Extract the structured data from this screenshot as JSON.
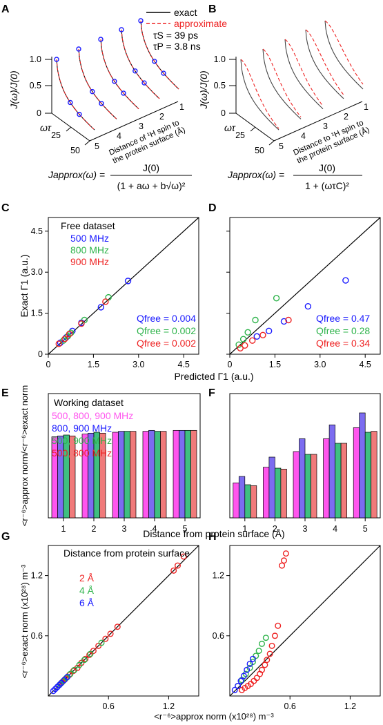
{
  "colors": {
    "blue": "#1a1aff",
    "green": "#2db34a",
    "red": "#ee2222",
    "magenta": "#ff55ee",
    "purple": "#7c6cf0",
    "teal": "#3fbf80",
    "salmon": "#f07a7a",
    "black": "#000000"
  },
  "panels": {
    "A": "A",
    "B": "B",
    "C": "C",
    "D": "D",
    "E": "E",
    "F": "F",
    "G": "G",
    "H": "H"
  },
  "top": {
    "legend": {
      "exact": "exact",
      "approximate": "approximate",
      "tau_s": "τS = 39 ps",
      "tau_p": "τP = 3.8 ns"
    },
    "y_label": "J(ω)/J(0)",
    "y_ticks": [
      "0",
      "0.5",
      "1.0"
    ],
    "x_label": "ωτ",
    "x_ticks": [
      "25",
      "50"
    ],
    "depth_ticks": [
      "5",
      "4",
      "3",
      "2",
      "1"
    ],
    "depth_label_A": [
      "Distance of ¹H spin to",
      "the protein surface (Å)"
    ],
    "depth_label_B": [
      "Distance to ¹H spin to",
      "the protein surface (Å)"
    ],
    "formula_A": {
      "lhs": "Japprox(ω) =",
      "num": "J(0)",
      "den": "(1 + aω + b√ω)²"
    },
    "formula_B": {
      "lhs": "Japprox(ω) =",
      "num": "J(0)",
      "den": "1 + (ωτC)²"
    }
  },
  "chart_data": [
    {
      "panel": "C",
      "type": "scatter",
      "title": "Free dataset",
      "xlabel": "Predicted Γ1 (a.u.)",
      "ylabel": "Exact Γ1 (a.u.)",
      "xlim": [
        0,
        5.0
      ],
      "ylim": [
        0,
        5.0
      ],
      "x_ticks": [
        "0",
        "1.5",
        "3.0",
        "4.5"
      ],
      "y_ticks": [
        "0",
        "1.5",
        "3.0",
        "4.5"
      ],
      "series": [
        {
          "name": "500 MHz",
          "color": "#1a1aff",
          "points": [
            [
              0.4,
              0.42
            ],
            [
              0.6,
              0.62
            ],
            [
              0.8,
              0.85
            ],
            [
              1.1,
              1.15
            ],
            [
              1.75,
              1.72
            ],
            [
              2.65,
              2.68
            ]
          ],
          "q": "Qfree = 0.004"
        },
        {
          "name": "800 MHz",
          "color": "#2db34a",
          "points": [
            [
              0.5,
              0.5
            ],
            [
              0.65,
              0.66
            ],
            [
              0.75,
              0.78
            ],
            [
              1.2,
              1.25
            ],
            [
              2.0,
              2.08
            ]
          ],
          "q": "Qfree = 0.002"
        },
        {
          "name": "900 MHz",
          "color": "#ee2222",
          "points": [
            [
              0.35,
              0.38
            ],
            [
              0.55,
              0.56
            ],
            [
              0.7,
              0.74
            ],
            [
              1.1,
              1.12
            ],
            [
              1.9,
              1.92
            ]
          ],
          "q": "Qfree = 0.002"
        }
      ]
    },
    {
      "panel": "D",
      "type": "scatter",
      "xlim": [
        0,
        5.0
      ],
      "ylim": [
        0,
        5.0
      ],
      "x_ticks": [
        "0",
        "1.5",
        "3.0",
        "4.5"
      ],
      "series": [
        {
          "color": "#1a1aff",
          "points": [
            [
              0.9,
              0.65
            ],
            [
              1.3,
              0.85
            ],
            [
              1.8,
              1.2
            ],
            [
              2.6,
              1.75
            ],
            [
              3.85,
              2.7
            ]
          ],
          "q": "Qfree = 0.47"
        },
        {
          "color": "#2db34a",
          "points": [
            [
              0.3,
              0.35
            ],
            [
              0.45,
              0.55
            ],
            [
              0.6,
              0.8
            ],
            [
              0.85,
              1.25
            ],
            [
              1.55,
              2.05
            ]
          ],
          "q": "Qfree = 0.28"
        },
        {
          "color": "#ee2222",
          "points": [
            [
              0.35,
              0.22
            ],
            [
              0.5,
              0.32
            ],
            [
              0.75,
              0.5
            ],
            [
              1.1,
              0.7
            ],
            [
              1.95,
              1.25
            ]
          ],
          "q": "Qfree = 0.34"
        }
      ]
    },
    {
      "panel": "E",
      "type": "bar",
      "title": "Working dataset",
      "ylabel": "<r⁻⁶>approx norm/<r⁻⁶>exact norm",
      "categories": [
        "1",
        "2",
        "3",
        "4",
        "5"
      ],
      "ylim": [
        0,
        1.35
      ],
      "series": [
        {
          "name": "500, 800, 900 MHz",
          "color": "#ff55ee",
          "values": [
            0.88,
            0.91,
            0.93,
            0.94,
            0.95
          ]
        },
        {
          "name": "800, 900 MHz",
          "color": "#7c6cf0",
          "values": [
            0.89,
            0.92,
            0.94,
            0.95,
            0.95
          ]
        },
        {
          "name": "500, 900 MHz",
          "color": "#3fbf80",
          "values": [
            0.9,
            0.93,
            0.94,
            0.94,
            0.95
          ]
        },
        {
          "name": "500, 800 MHz",
          "color": "#f07a7a",
          "values": [
            0.89,
            0.92,
            0.94,
            0.94,
            0.95
          ]
        }
      ]
    },
    {
      "panel": "F",
      "type": "bar",
      "xlabel": "Distance from protein surface (Å)",
      "categories": [
        "1",
        "2",
        "3",
        "4",
        "5"
      ],
      "ylim": [
        0,
        1.35
      ],
      "series": [
        {
          "color": "#ff55ee",
          "values": [
            0.38,
            0.55,
            0.72,
            0.86,
            0.98
          ]
        },
        {
          "color": "#7c6cf0",
          "values": [
            0.45,
            0.66,
            0.86,
            1.01,
            1.14
          ]
        },
        {
          "color": "#3fbf80",
          "values": [
            0.36,
            0.54,
            0.69,
            0.81,
            0.93
          ]
        },
        {
          "color": "#f07a7a",
          "values": [
            0.35,
            0.53,
            0.69,
            0.81,
            0.94
          ]
        }
      ]
    },
    {
      "panel": "G",
      "type": "scatter",
      "title": "Distance from protein surface",
      "xlabel": "<r⁻⁶>approx norm (x10²⁸) m⁻³",
      "ylabel": "<r⁻⁶>exact norm (x10²⁸) m⁻³",
      "xlim": [
        0,
        1.5
      ],
      "ylim": [
        0,
        1.5
      ],
      "x_ticks": [
        "0.6",
        "1.2"
      ],
      "y_ticks": [
        "0.6",
        "1.2"
      ],
      "series": [
        {
          "name": "2 Å",
          "color": "#ee2222",
          "points": [
            [
              0.14,
              0.14
            ],
            [
              0.17,
              0.17
            ],
            [
              0.21,
              0.21
            ],
            [
              0.25,
              0.25
            ],
            [
              0.29,
              0.28
            ],
            [
              0.33,
              0.33
            ],
            [
              0.37,
              0.37
            ],
            [
              0.41,
              0.41
            ],
            [
              0.45,
              0.45
            ],
            [
              0.5,
              0.5
            ],
            [
              0.57,
              0.57
            ],
            [
              0.62,
              0.62
            ],
            [
              0.69,
              0.69
            ],
            [
              1.25,
              1.25
            ],
            [
              1.29,
              1.3
            ],
            [
              1.35,
              1.39
            ]
          ]
        },
        {
          "name": "4 Å",
          "color": "#2db34a",
          "points": [
            [
              0.09,
              0.09
            ],
            [
              0.12,
              0.12
            ],
            [
              0.15,
              0.15
            ],
            [
              0.18,
              0.18
            ],
            [
              0.22,
              0.22
            ],
            [
              0.26,
              0.26
            ],
            [
              0.31,
              0.31
            ],
            [
              0.36,
              0.36
            ],
            [
              0.42,
              0.42
            ],
            [
              0.53,
              0.53
            ]
          ]
        },
        {
          "name": "6 Å",
          "color": "#1a1aff",
          "points": [
            [
              0.05,
              0.05
            ],
            [
              0.07,
              0.07
            ],
            [
              0.09,
              0.09
            ],
            [
              0.11,
              0.11
            ],
            [
              0.13,
              0.13
            ],
            [
              0.16,
              0.16
            ],
            [
              0.19,
              0.19
            ]
          ]
        }
      ]
    },
    {
      "panel": "H",
      "type": "scatter",
      "xlim": [
        0,
        1.5
      ],
      "ylim": [
        0,
        1.5
      ],
      "x_ticks": [
        "0.6",
        "1.2"
      ],
      "y_ticks": [
        "0.6",
        "1.2"
      ],
      "series": [
        {
          "color": "#ee2222",
          "points": [
            [
              0.12,
              0.06
            ],
            [
              0.15,
              0.08
            ],
            [
              0.18,
              0.1
            ],
            [
              0.21,
              0.12
            ],
            [
              0.24,
              0.15
            ],
            [
              0.27,
              0.18
            ],
            [
              0.3,
              0.22
            ],
            [
              0.32,
              0.26
            ],
            [
              0.35,
              0.31
            ],
            [
              0.37,
              0.36
            ],
            [
              0.4,
              0.42
            ],
            [
              0.42,
              0.5
            ],
            [
              0.45,
              0.6
            ],
            [
              0.48,
              0.7
            ],
            [
              0.52,
              1.3
            ],
            [
              0.54,
              1.35
            ],
            [
              0.56,
              1.42
            ]
          ]
        },
        {
          "color": "#2db34a",
          "points": [
            [
              0.08,
              0.1
            ],
            [
              0.12,
              0.16
            ],
            [
              0.16,
              0.22
            ],
            [
              0.2,
              0.28
            ],
            [
              0.23,
              0.34
            ],
            [
              0.26,
              0.4
            ],
            [
              0.29,
              0.45
            ],
            [
              0.32,
              0.52
            ],
            [
              0.36,
              0.58
            ]
          ]
        },
        {
          "color": "#1a1aff",
          "points": [
            [
              0.05,
              0.06
            ],
            [
              0.08,
              0.1
            ],
            [
              0.11,
              0.15
            ],
            [
              0.14,
              0.2
            ],
            [
              0.17,
              0.26
            ],
            [
              0.2,
              0.32
            ],
            [
              0.23,
              0.37
            ]
          ]
        }
      ]
    }
  ]
}
